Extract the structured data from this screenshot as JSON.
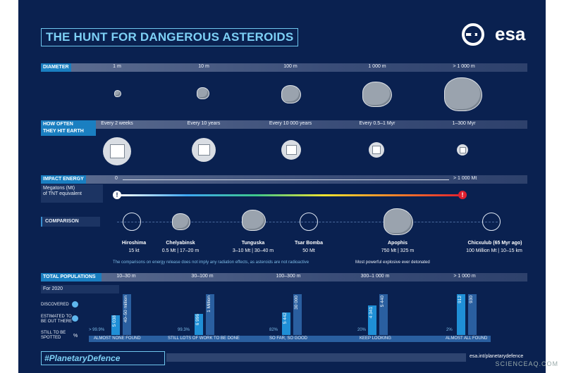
{
  "title": "THE HUNT FOR DANGEROUS ASTEROIDS",
  "logo_text": "esa",
  "diameter": {
    "label": "DIAMETER",
    "ticks": [
      "1 m",
      "10 m",
      "100 m",
      "1 000 m",
      "> 1 000 m"
    ]
  },
  "frequency": {
    "label_line1": "HOW OFTEN",
    "label_line2": "THEY HIT EARTH",
    "ticks": [
      "Every 2 weeks",
      "Every 10 years",
      "Every 10 000 years",
      "Every 0.5–1 Myr",
      "1–300 Myr"
    ]
  },
  "impact": {
    "label": "IMPACT ENERGY",
    "start": "0",
    "end": "> 1 000 Mt",
    "unit_line1": "Megatons (Mt)",
    "unit_line2": "of TNT equivalent",
    "start_marker": "!",
    "end_marker": "!"
  },
  "comparison": {
    "label": "COMPARISON",
    "items": [
      {
        "name": "Hiroshima",
        "value": "15 kt",
        "bullet": true
      },
      {
        "name": "Chelyabinsk",
        "value": "0.5 Mt | 17–20 m"
      },
      {
        "name": "Tunguska",
        "value": "3–10 Mt | 30–40 m"
      },
      {
        "name": "Tsar Bomba",
        "value": "50 Mt",
        "bullet": true
      },
      {
        "name": "Apophis",
        "value": "750 Mt | 325 m"
      },
      {
        "name": "Chicxulub (65 Myr ago)",
        "value": "100 Million Mt | 10–15 km"
      }
    ],
    "note1": "The comparisons on energy release does not imply any radiation effects, as asteroids are not radioactive",
    "note2": "Most powerful explosive ever detonated"
  },
  "populations": {
    "label": "TOTAL POPULATIONS",
    "year": "For 2020",
    "row_discovered": "DISCOVERED",
    "row_estimated_1": "ESTIMATED TO",
    "row_estimated_2": "BE OUT THERE",
    "row_spotted_1": "STILL TO BE",
    "row_spotted_2": "SPOTTED",
    "percent_sign": "%",
    "groups": [
      {
        "range": "10–30 m",
        "discovered": "5 038",
        "estimated": "40–50 million",
        "pct": "> 99.9%",
        "status": "ALMOST NONE FOUND"
      },
      {
        "range": "30–100 m",
        "discovered": "6 996",
        "estimated": "1 Million",
        "pct": "99.3%",
        "status": "STILL LOTS OF WORK TO BE DONE"
      },
      {
        "range": "100–300 m",
        "discovered": "5 442",
        "estimated": "30 000",
        "pct": "82%",
        "status": "SO FAR, SO GOOD"
      },
      {
        "range": "300–1 000 m",
        "discovered": "4 341",
        "estimated": "5 440",
        "pct": "20%",
        "status": "KEEP LOOKING"
      },
      {
        "range": "> 1 000 m",
        "discovered": "912",
        "estimated": "930",
        "pct": "2%",
        "status": "ALMOST ALL FOUND"
      }
    ]
  },
  "hashtag": "#PlanetaryDefence",
  "url": "esa.int/planetarydefence",
  "credit": "SCIENCEAQ.COM",
  "colors": {
    "background": "#0a2150",
    "accent": "#1a7fc1",
    "title": "#7dd0f5"
  }
}
